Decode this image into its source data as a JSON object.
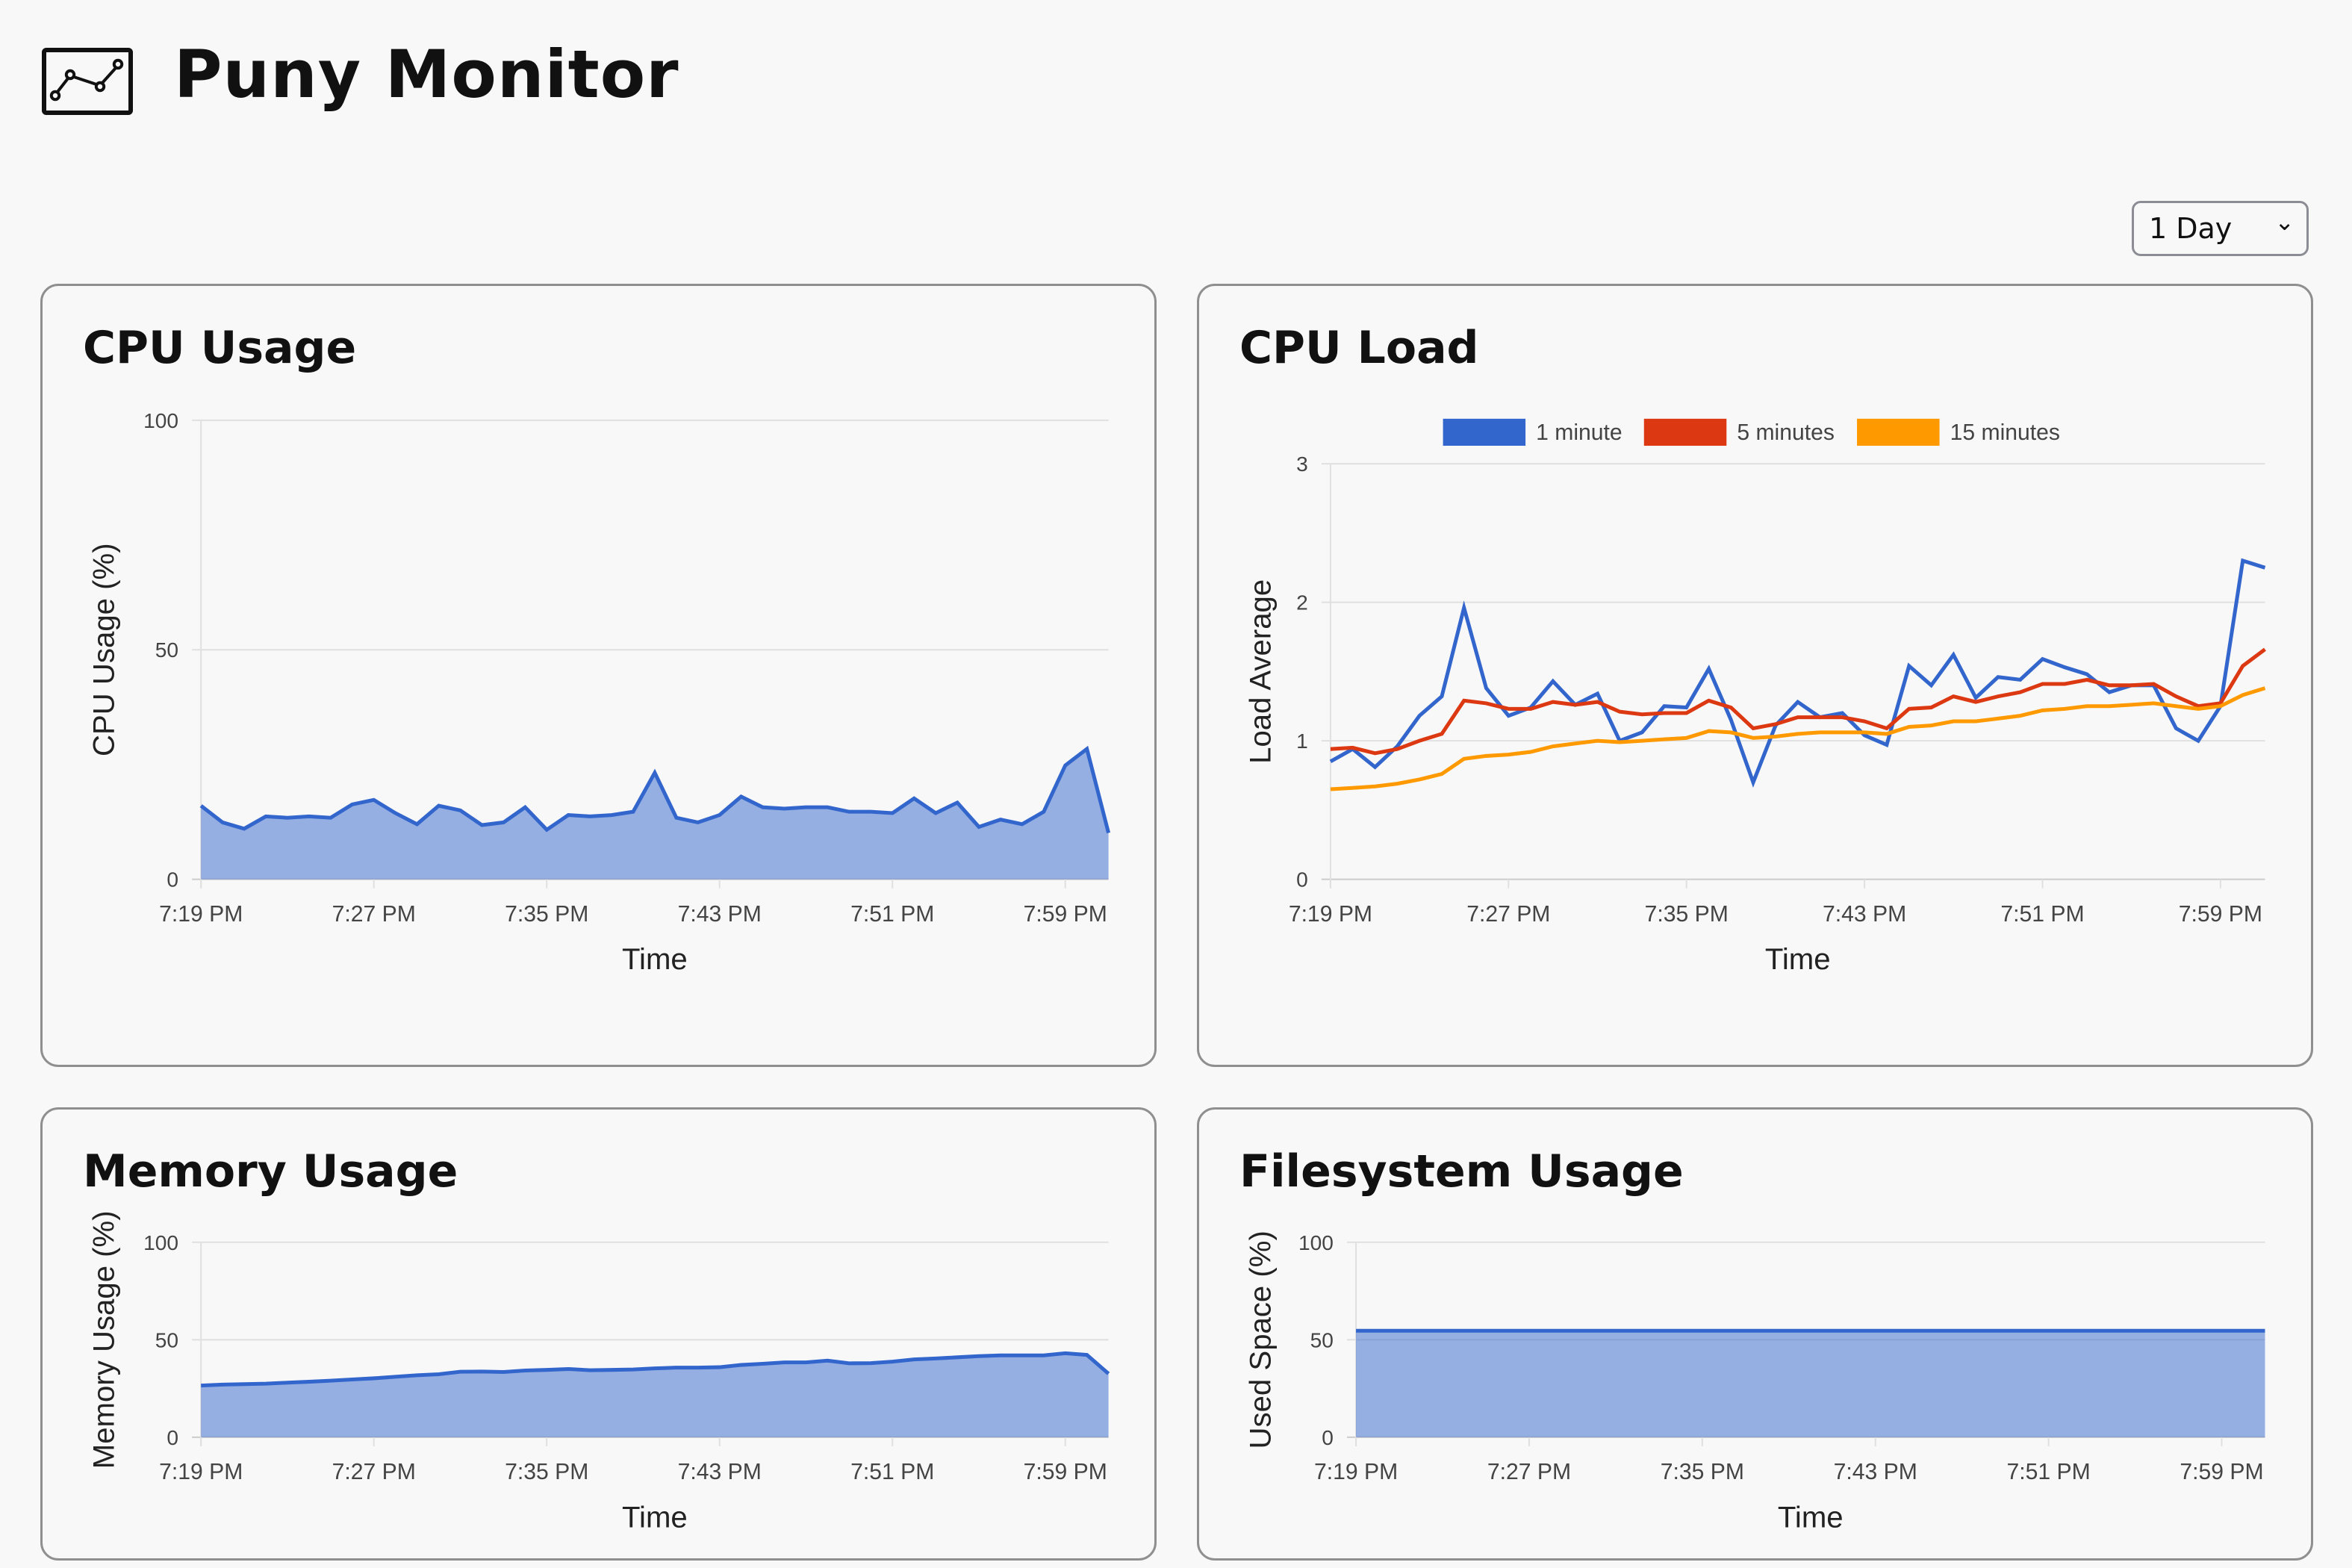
{
  "header": {
    "title": "Puny Monitor",
    "logo_icon": "line-chart-icon"
  },
  "range_select": {
    "value": "1 Day",
    "icon": "chevron-down-icon"
  },
  "colors": {
    "series_blue": "#3366cc",
    "series_red": "#dc3912",
    "series_orange": "#ff9900",
    "grid": "#e0e0e0",
    "background": "#f8f8f8"
  },
  "cards": [
    {
      "title": "CPU Usage"
    },
    {
      "title": "CPU Load"
    },
    {
      "title": "Memory Usage"
    },
    {
      "title": "Filesystem Usage"
    }
  ],
  "chart_data": [
    {
      "type": "area",
      "xlabel": "Time",
      "ylabel": "CPU Usage (%)",
      "ylim": [
        0,
        100
      ],
      "yticks": [
        "0",
        "50",
        "100"
      ],
      "xticks": [
        "7:19 PM",
        "7:27 PM",
        "7:35 PM",
        "7:43 PM",
        "7:51 PM",
        "7:59 PM"
      ],
      "grid": true,
      "x": [
        "7:19 PM",
        "7:20 PM",
        "7:21 PM",
        "7:22 PM",
        "7:23 PM",
        "7:24 PM",
        "7:25 PM",
        "7:26 PM",
        "7:27 PM",
        "7:28 PM",
        "7:29 PM",
        "7:30 PM",
        "7:31 PM",
        "7:32 PM",
        "7:33 PM",
        "7:34 PM",
        "7:35 PM",
        "7:36 PM",
        "7:37 PM",
        "7:38 PM",
        "7:39 PM",
        "7:40 PM",
        "7:41 PM",
        "7:42 PM",
        "7:43 PM",
        "7:44 PM",
        "7:45 PM",
        "7:46 PM",
        "7:47 PM",
        "7:48 PM",
        "7:49 PM",
        "7:50 PM",
        "7:51 PM",
        "7:52 PM",
        "7:53 PM",
        "7:54 PM",
        "7:55 PM",
        "7:56 PM",
        "7:57 PM",
        "7:58 PM",
        "7:59 PM",
        "8:00 PM",
        "8:01 PM"
      ],
      "series": [
        {
          "color": "#3366cc",
          "values": [
            16,
            12.4,
            11,
            13.7,
            13.4,
            13.7,
            13.4,
            16.3,
            17.3,
            14.4,
            12,
            16,
            15,
            11.8,
            12.4,
            15.7,
            10.8,
            14,
            13.7,
            14,
            14.7,
            23.2,
            13.4,
            12.4,
            14,
            18,
            15.7,
            15.4,
            15.7,
            15.7,
            14.7,
            14.7,
            14.4,
            17.6,
            14.4,
            16.7,
            11.4,
            13,
            12,
            14.7,
            24.8,
            28.4,
            10.1
          ]
        }
      ]
    },
    {
      "type": "line",
      "xlabel": "Time",
      "ylabel": "Load Average",
      "ylim": [
        0,
        3
      ],
      "yticks": [
        "0",
        "1",
        "2",
        "3"
      ],
      "xticks": [
        "7:19 PM",
        "7:27 PM",
        "7:35 PM",
        "7:43 PM",
        "7:51 PM",
        "7:59 PM"
      ],
      "grid": true,
      "legend": "top",
      "x": [
        "7:19 PM",
        "7:20 PM",
        "7:21 PM",
        "7:22 PM",
        "7:23 PM",
        "7:24 PM",
        "7:25 PM",
        "7:26 PM",
        "7:27 PM",
        "7:28 PM",
        "7:29 PM",
        "7:30 PM",
        "7:31 PM",
        "7:32 PM",
        "7:33 PM",
        "7:34 PM",
        "7:35 PM",
        "7:36 PM",
        "7:37 PM",
        "7:38 PM",
        "7:39 PM",
        "7:40 PM",
        "7:41 PM",
        "7:42 PM",
        "7:43 PM",
        "7:44 PM",
        "7:45 PM",
        "7:46 PM",
        "7:47 PM",
        "7:48 PM",
        "7:49 PM",
        "7:50 PM",
        "7:51 PM",
        "7:52 PM",
        "7:53 PM",
        "7:54 PM",
        "7:55 PM",
        "7:56 PM",
        "7:57 PM",
        "7:58 PM",
        "7:59 PM",
        "8:00 PM",
        "8:01 PM"
      ],
      "series": [
        {
          "name": "1 minute",
          "color": "#3366cc",
          "values": [
            0.85,
            0.94,
            0.81,
            0.96,
            1.18,
            1.32,
            1.96,
            1.38,
            1.18,
            1.24,
            1.43,
            1.26,
            1.34,
            1.0,
            1.06,
            1.25,
            1.24,
            1.52,
            1.15,
            0.7,
            1.11,
            1.28,
            1.17,
            1.2,
            1.04,
            0.97,
            1.54,
            1.4,
            1.62,
            1.31,
            1.46,
            1.44,
            1.59,
            1.53,
            1.48,
            1.35,
            1.4,
            1.4,
            1.09,
            1.0,
            1.25,
            2.3,
            2.25
          ]
        },
        {
          "name": "5 minutes",
          "color": "#dc3912",
          "values": [
            0.94,
            0.95,
            0.91,
            0.94,
            1.0,
            1.05,
            1.29,
            1.27,
            1.23,
            1.23,
            1.28,
            1.26,
            1.28,
            1.21,
            1.19,
            1.2,
            1.2,
            1.29,
            1.24,
            1.09,
            1.12,
            1.17,
            1.17,
            1.17,
            1.14,
            1.09,
            1.23,
            1.24,
            1.32,
            1.28,
            1.32,
            1.35,
            1.41,
            1.41,
            1.44,
            1.4,
            1.4,
            1.41,
            1.32,
            1.25,
            1.27,
            1.54,
            1.66
          ]
        },
        {
          "name": "15 minutes",
          "color": "#ff9900",
          "values": [
            0.65,
            0.66,
            0.67,
            0.69,
            0.72,
            0.76,
            0.87,
            0.89,
            0.9,
            0.92,
            0.96,
            0.98,
            1.0,
            0.99,
            1.0,
            1.01,
            1.02,
            1.07,
            1.06,
            1.02,
            1.03,
            1.05,
            1.06,
            1.06,
            1.06,
            1.05,
            1.1,
            1.11,
            1.14,
            1.14,
            1.16,
            1.18,
            1.22,
            1.23,
            1.25,
            1.25,
            1.26,
            1.27,
            1.25,
            1.23,
            1.25,
            1.33,
            1.38
          ]
        }
      ]
    },
    {
      "type": "area",
      "xlabel": "Time",
      "ylabel": "Memory Usage (%)",
      "ylim": [
        0,
        100
      ],
      "yticks": [
        "0",
        "50",
        "100"
      ],
      "xticks": [
        "7:19 PM",
        "7:27 PM",
        "7:35 PM",
        "7:43 PM",
        "7:51 PM",
        "7:59 PM"
      ],
      "grid": true,
      "x": [
        "7:19 PM",
        "7:20 PM",
        "7:21 PM",
        "7:22 PM",
        "7:23 PM",
        "7:24 PM",
        "7:25 PM",
        "7:26 PM",
        "7:27 PM",
        "7:28 PM",
        "7:29 PM",
        "7:30 PM",
        "7:31 PM",
        "7:32 PM",
        "7:33 PM",
        "7:34 PM",
        "7:35 PM",
        "7:36 PM",
        "7:37 PM",
        "7:38 PM",
        "7:39 PM",
        "7:40 PM",
        "7:41 PM",
        "7:42 PM",
        "7:43 PM",
        "7:44 PM",
        "7:45 PM",
        "7:46 PM",
        "7:47 PM",
        "7:48 PM",
        "7:49 PM",
        "7:50 PM",
        "7:51 PM",
        "7:52 PM",
        "7:53 PM",
        "7:54 PM",
        "7:55 PM",
        "7:56 PM",
        "7:57 PM",
        "7:58 PM",
        "7:59 PM",
        "8:00 PM",
        "8:01 PM"
      ],
      "series": [
        {
          "color": "#3366cc",
          "values": [
            26.5,
            27,
            27.2,
            27.5,
            28,
            28.5,
            29,
            29.6,
            30.2,
            31,
            31.8,
            32.3,
            33.6,
            33.7,
            33.5,
            34.2,
            34.5,
            35,
            34.4,
            34.5,
            34.8,
            35.3,
            35.7,
            35.7,
            35.9,
            37.1,
            37.7,
            38.4,
            38.4,
            39.3,
            37.9,
            38,
            38.8,
            39.9,
            40.4,
            41,
            41.6,
            42,
            42,
            42,
            43.1,
            42.2,
            32.6
          ]
        }
      ]
    },
    {
      "type": "area",
      "xlabel": "Time",
      "ylabel": "Used Space (%)",
      "ylim": [
        0,
        100
      ],
      "yticks": [
        "0",
        "50",
        "100"
      ],
      "xticks": [
        "7:19 PM",
        "7:27 PM",
        "7:35 PM",
        "7:43 PM",
        "7:51 PM",
        "7:59 PM"
      ],
      "grid": true,
      "x": [
        "7:19 PM",
        "7:20 PM",
        "7:21 PM",
        "7:22 PM",
        "7:23 PM",
        "7:24 PM",
        "7:25 PM",
        "7:26 PM",
        "7:27 PM",
        "7:28 PM",
        "7:29 PM",
        "7:30 PM",
        "7:31 PM",
        "7:32 PM",
        "7:33 PM",
        "7:34 PM",
        "7:35 PM",
        "7:36 PM",
        "7:37 PM",
        "7:38 PM",
        "7:39 PM",
        "7:40 PM",
        "7:41 PM",
        "7:42 PM",
        "7:43 PM",
        "7:44 PM",
        "7:45 PM",
        "7:46 PM",
        "7:47 PM",
        "7:48 PM",
        "7:49 PM",
        "7:50 PM",
        "7:51 PM",
        "7:52 PM",
        "7:53 PM",
        "7:54 PM",
        "7:55 PM",
        "7:56 PM",
        "7:57 PM",
        "7:58 PM",
        "7:59 PM",
        "8:00 PM",
        "8:01 PM"
      ],
      "series": [
        {
          "color": "#3366cc",
          "values": [
            54.6,
            54.6,
            54.6,
            54.6,
            54.6,
            54.6,
            54.6,
            54.6,
            54.6,
            54.6,
            54.6,
            54.6,
            54.6,
            54.6,
            54.6,
            54.6,
            54.6,
            54.6,
            54.6,
            54.6,
            54.6,
            54.6,
            54.6,
            54.6,
            54.6,
            54.6,
            54.6,
            54.6,
            54.6,
            54.6,
            54.6,
            54.6,
            54.6,
            54.6,
            54.6,
            54.6,
            54.6,
            54.6,
            54.6,
            54.6,
            54.6,
            54.6,
            54.6
          ]
        }
      ]
    }
  ]
}
